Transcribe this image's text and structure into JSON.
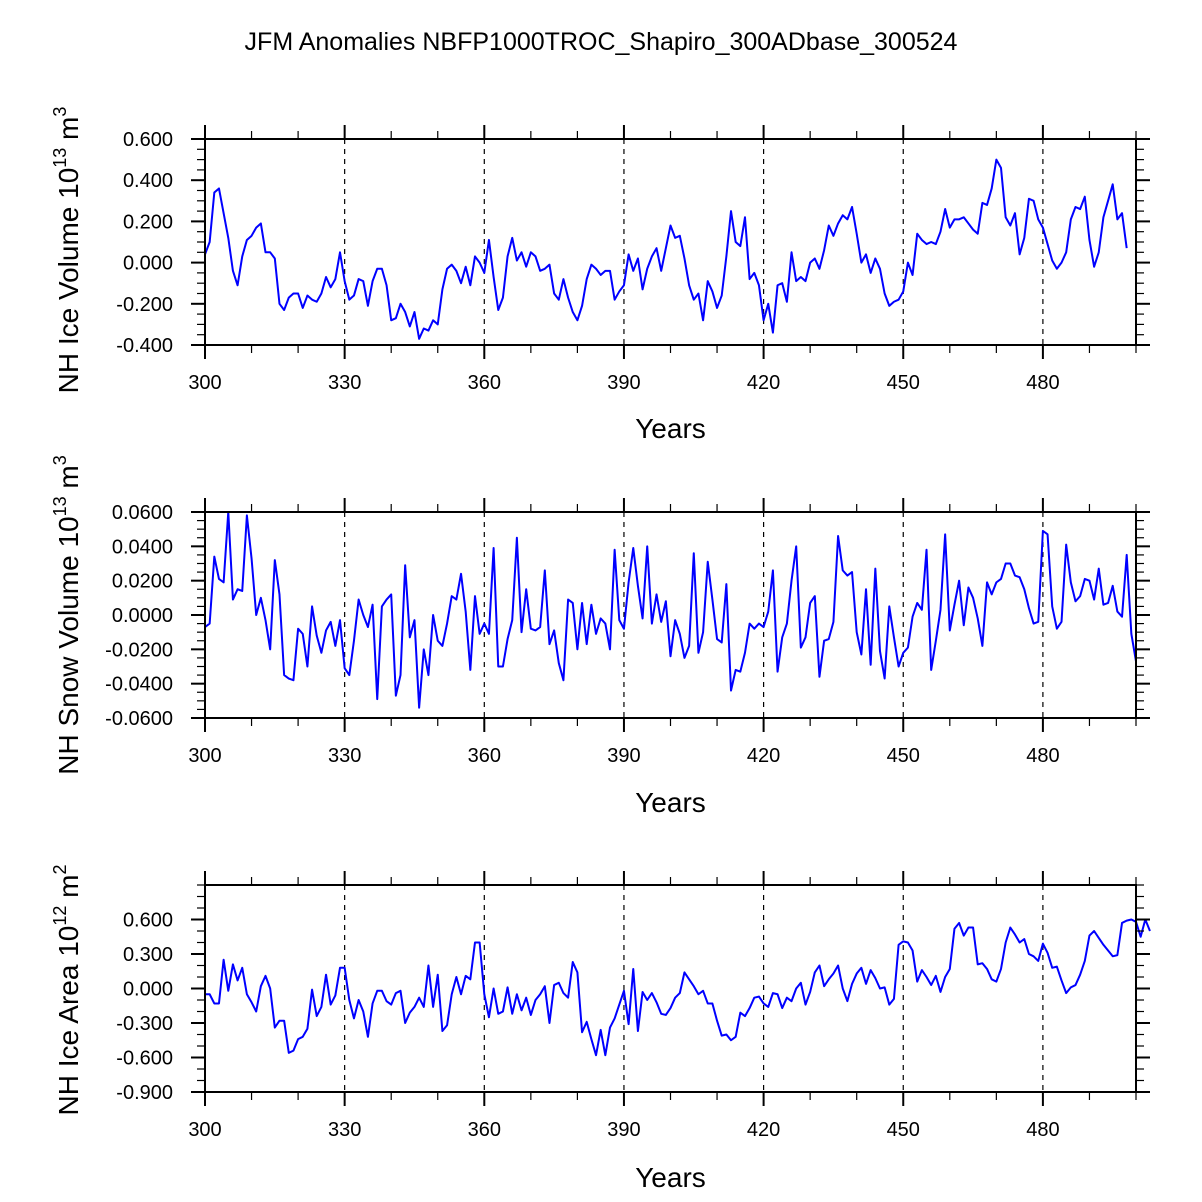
{
  "chart_data": {
    "title": "JFM Anomalies NBFP1000TROC_Shapiro_300ADbase_300524",
    "panels": [
      {
        "type": "line",
        "ylabel_main": "NH Ice Volume 10",
        "ylabel_exp": "13",
        "ylabel_unit": " m",
        "ylabel_unit_exp": "3",
        "xlabel": "Years",
        "xlim": [
          300,
          500
        ],
        "ylim": [
          -0.4,
          0.6
        ],
        "yticks": [
          -0.4,
          -0.2,
          0.0,
          0.2,
          0.4,
          0.6
        ],
        "ytick_labels": [
          "-0.400",
          "-0.200",
          "0.000",
          "0.200",
          "0.400",
          "0.600"
        ],
        "xticks": [
          300,
          330,
          360,
          390,
          420,
          450,
          480
        ],
        "xtick_labels": [
          "300",
          "330",
          "360",
          "390",
          "420",
          "450",
          "480"
        ],
        "vlines": [
          330,
          360,
          390,
          420,
          450,
          480
        ],
        "series": [
          {
            "name": "NH Ice Volume",
            "color": "#0000ff",
            "x_start": 300,
            "values": [
              0.04,
              0.1,
              0.34,
              0.36,
              0.24,
              0.12,
              -0.04,
              -0.11,
              0.03,
              0.11,
              0.13,
              0.17,
              0.19,
              0.05,
              0.05,
              0.02,
              -0.2,
              -0.23,
              -0.17,
              -0.15,
              -0.15,
              -0.22,
              -0.16,
              -0.18,
              -0.19,
              -0.15,
              -0.07,
              -0.12,
              -0.08,
              0.05,
              -0.09,
              -0.18,
              -0.16,
              -0.08,
              -0.09,
              -0.21,
              -0.09,
              -0.03,
              -0.03,
              -0.11,
              -0.28,
              -0.27,
              -0.2,
              -0.24,
              -0.31,
              -0.24,
              -0.37,
              -0.32,
              -0.33,
              -0.28,
              -0.3,
              -0.13,
              -0.03,
              -0.01,
              -0.04,
              -0.1,
              -0.02,
              -0.11,
              0.03,
              0.0,
              -0.05,
              0.11,
              -0.07,
              -0.23,
              -0.17,
              0.03,
              0.12,
              0.01,
              0.05,
              -0.02,
              0.05,
              0.03,
              -0.04,
              -0.03,
              -0.01,
              -0.15,
              -0.18,
              -0.08,
              -0.17,
              -0.24,
              -0.28,
              -0.21,
              -0.08,
              -0.01,
              -0.03,
              -0.06,
              -0.04,
              -0.04,
              -0.18,
              -0.14,
              -0.11,
              0.04,
              -0.04,
              0.02,
              -0.13,
              -0.03,
              0.03,
              0.07,
              -0.04,
              0.07,
              0.18,
              0.12,
              0.13,
              0.02,
              -0.11,
              -0.18,
              -0.15,
              -0.28,
              -0.09,
              -0.14,
              -0.22,
              -0.16,
              0.03,
              0.25,
              0.1,
              0.08,
              0.22,
              -0.08,
              -0.05,
              -0.11,
              -0.28,
              -0.2,
              -0.34,
              -0.11,
              -0.1,
              -0.19,
              0.05,
              -0.09,
              -0.07,
              -0.09,
              0.0,
              0.02,
              -0.03,
              0.06,
              0.18,
              0.13,
              0.19,
              0.23,
              0.21,
              0.27,
              0.14,
              0.0,
              0.04,
              -0.05,
              0.02,
              -0.03,
              -0.15,
              -0.21,
              -0.19,
              -0.18,
              -0.14,
              0.0,
              -0.06,
              0.14,
              0.11,
              0.09,
              0.1,
              0.09,
              0.15,
              0.26,
              0.17,
              0.21,
              0.21,
              0.22,
              0.19,
              0.16,
              0.14,
              0.29,
              0.28,
              0.36,
              0.5,
              0.46,
              0.22,
              0.18,
              0.24,
              0.04,
              0.12,
              0.31,
              0.3,
              0.21,
              0.17,
              0.09,
              0.01,
              -0.03,
              0.0,
              0.05,
              0.21,
              0.27,
              0.26,
              0.32,
              0.11,
              -0.02,
              0.05,
              0.22,
              0.3,
              0.38,
              0.21,
              0.24,
              0.07
            ]
          }
        ]
      },
      {
        "type": "line",
        "ylabel_main": "NH Snow Volume 10",
        "ylabel_exp": "13",
        "ylabel_unit": " m",
        "ylabel_unit_exp": "3",
        "xlabel": "Years",
        "xlim": [
          300,
          500
        ],
        "ylim": [
          -0.06,
          0.06
        ],
        "yticks": [
          -0.06,
          -0.04,
          -0.02,
          0.0,
          0.02,
          0.04,
          0.06
        ],
        "ytick_labels": [
          "-0.0600",
          "-0.0400",
          "-0.0200",
          "0.0000",
          "0.0200",
          "0.0400",
          "0.0600"
        ],
        "xticks": [
          300,
          330,
          360,
          390,
          420,
          450,
          480
        ],
        "xtick_labels": [
          "300",
          "330",
          "360",
          "390",
          "420",
          "450",
          "480"
        ],
        "vlines": [
          330,
          360,
          390,
          420,
          450,
          480
        ],
        "series": [
          {
            "name": "NH Snow Volume",
            "color": "#0000ff",
            "x_start": 300,
            "values": [
              -0.007,
              -0.005,
              0.034,
              0.021,
              0.019,
              0.06,
              0.009,
              0.015,
              0.014,
              0.058,
              0.033,
              0.0,
              0.01,
              -0.003,
              -0.02,
              0.032,
              0.012,
              -0.035,
              -0.037,
              -0.038,
              -0.008,
              -0.011,
              -0.03,
              0.005,
              -0.012,
              -0.022,
              -0.009,
              -0.004,
              -0.018,
              -0.003,
              -0.031,
              -0.035,
              -0.015,
              0.009,
              0.0,
              -0.007,
              0.006,
              -0.049,
              0.005,
              0.009,
              0.012,
              -0.047,
              -0.035,
              0.029,
              -0.013,
              -0.003,
              -0.054,
              -0.02,
              -0.035,
              0.0,
              -0.015,
              -0.018,
              -0.005,
              0.011,
              0.009,
              0.024,
              0.002,
              -0.032,
              0.011,
              -0.011,
              -0.005,
              -0.011,
              0.039,
              -0.03,
              -0.03,
              -0.014,
              -0.003,
              0.045,
              -0.01,
              0.015,
              -0.008,
              -0.009,
              -0.007,
              0.026,
              -0.017,
              -0.009,
              -0.028,
              -0.038,
              0.009,
              0.007,
              -0.02,
              0.007,
              -0.017,
              0.006,
              -0.011,
              -0.002,
              -0.005,
              -0.02,
              0.038,
              -0.003,
              -0.008,
              0.019,
              0.039,
              0.017,
              -0.002,
              0.04,
              -0.005,
              0.012,
              -0.004,
              0.008,
              -0.024,
              -0.003,
              -0.011,
              -0.025,
              -0.018,
              0.036,
              -0.022,
              -0.01,
              0.031,
              0.009,
              -0.014,
              -0.016,
              0.018,
              -0.044,
              -0.032,
              -0.033,
              -0.022,
              -0.005,
              -0.008,
              -0.005,
              -0.007,
              0.002,
              0.026,
              -0.033,
              -0.013,
              -0.005,
              0.02,
              0.04,
              -0.019,
              -0.013,
              0.007,
              0.011,
              -0.036,
              -0.015,
              -0.014,
              -0.004,
              0.046,
              0.026,
              0.023,
              0.025,
              -0.01,
              -0.023,
              0.015,
              -0.029,
              0.027,
              -0.021,
              -0.037,
              0.005,
              -0.013,
              -0.03,
              -0.022,
              -0.019,
              -0.001,
              0.007,
              0.003,
              0.038,
              -0.032,
              -0.015,
              0.003,
              0.047,
              -0.009,
              0.006,
              0.02,
              -0.006,
              0.016,
              0.01,
              -0.002,
              -0.018,
              0.019,
              0.012,
              0.019,
              0.021,
              0.03,
              0.03,
              0.023,
              0.022,
              0.015,
              0.004,
              -0.005,
              -0.004,
              0.049,
              0.047,
              0.005,
              -0.008,
              -0.004,
              0.041,
              0.019,
              0.008,
              0.011,
              0.021,
              0.02,
              0.009,
              0.027,
              0.006,
              0.007,
              0.017,
              0.002,
              -0.001,
              0.035,
              -0.011,
              -0.027
            ]
          }
        ]
      },
      {
        "type": "line",
        "ylabel_main": "NH Ice Area 10",
        "ylabel_exp": "12",
        "ylabel_unit": " m",
        "ylabel_unit_exp": "2",
        "xlabel": "Years",
        "xlim": [
          300,
          500
        ],
        "ylim": [
          -0.9,
          0.9
        ],
        "yticks": [
          -0.9,
          -0.6,
          -0.3,
          0.0,
          0.3,
          0.6
        ],
        "ytick_labels": [
          "-0.900",
          "-0.600",
          "-0.300",
          "0.000",
          "0.300",
          "0.600"
        ],
        "xticks": [
          300,
          330,
          360,
          390,
          420,
          450,
          480
        ],
        "xtick_labels": [
          "300",
          "330",
          "360",
          "390",
          "420",
          "450",
          "480"
        ],
        "vlines": [
          330,
          360,
          390,
          420,
          450,
          480
        ],
        "series": [
          {
            "name": "NH Ice Area",
            "color": "#0000ff",
            "x_start": 300,
            "values": [
              -0.05,
              -0.05,
              -0.13,
              -0.13,
              0.25,
              -0.02,
              0.21,
              0.07,
              0.18,
              -0.05,
              -0.12,
              -0.2,
              0.02,
              0.11,
              0.0,
              -0.34,
              -0.28,
              -0.28,
              -0.56,
              -0.54,
              -0.44,
              -0.42,
              -0.35,
              -0.01,
              -0.24,
              -0.16,
              0.12,
              -0.14,
              -0.06,
              0.18,
              0.18,
              -0.1,
              -0.26,
              -0.1,
              -0.2,
              -0.42,
              -0.13,
              -0.02,
              -0.02,
              -0.11,
              -0.14,
              -0.04,
              -0.02,
              -0.3,
              -0.21,
              -0.16,
              -0.08,
              -0.16,
              0.2,
              -0.16,
              0.12,
              -0.37,
              -0.32,
              -0.05,
              0.1,
              -0.05,
              0.11,
              0.08,
              0.4,
              0.4,
              -0.05,
              -0.25,
              0.0,
              -0.22,
              -0.2,
              0.01,
              -0.22,
              -0.05,
              -0.19,
              -0.08,
              -0.23,
              -0.1,
              -0.05,
              0.02,
              -0.3,
              0.03,
              0.05,
              -0.04,
              -0.08,
              0.23,
              0.14,
              -0.38,
              -0.29,
              -0.44,
              -0.58,
              -0.36,
              -0.58,
              -0.34,
              -0.26,
              -0.14,
              -0.02,
              -0.31,
              0.17,
              -0.37,
              -0.03,
              -0.1,
              -0.04,
              -0.12,
              -0.22,
              -0.23,
              -0.17,
              -0.08,
              -0.04,
              0.14,
              0.08,
              0.02,
              -0.05,
              -0.02,
              -0.13,
              -0.13,
              -0.28,
              -0.41,
              -0.4,
              -0.45,
              -0.42,
              -0.21,
              -0.24,
              -0.17,
              -0.08,
              -0.07,
              -0.13,
              -0.16,
              -0.04,
              -0.05,
              -0.17,
              -0.08,
              -0.11,
              0.0,
              0.05,
              -0.14,
              -0.03,
              0.14,
              0.2,
              0.02,
              0.08,
              0.13,
              0.2,
              0.0,
              -0.11,
              0.04,
              0.13,
              0.18,
              0.04,
              0.16,
              0.09,
              0.0,
              0.01,
              -0.14,
              -0.09,
              0.38,
              0.41,
              0.4,
              0.33,
              0.06,
              0.16,
              0.1,
              0.03,
              0.11,
              -0.03,
              0.1,
              0.17,
              0.52,
              0.57,
              0.46,
              0.53,
              0.53,
              0.21,
              0.22,
              0.17,
              0.08,
              0.06,
              0.17,
              0.4,
              0.53,
              0.47,
              0.4,
              0.43,
              0.3,
              0.28,
              0.24,
              0.39,
              0.31,
              0.18,
              0.19,
              0.07,
              -0.04,
              0.01,
              0.03,
              0.12,
              0.24,
              0.46,
              0.5,
              0.44,
              0.38,
              0.33,
              0.28,
              0.29,
              0.57,
              0.59,
              0.6,
              0.58,
              0.45,
              0.6,
              0.5
            ]
          }
        ]
      }
    ]
  }
}
